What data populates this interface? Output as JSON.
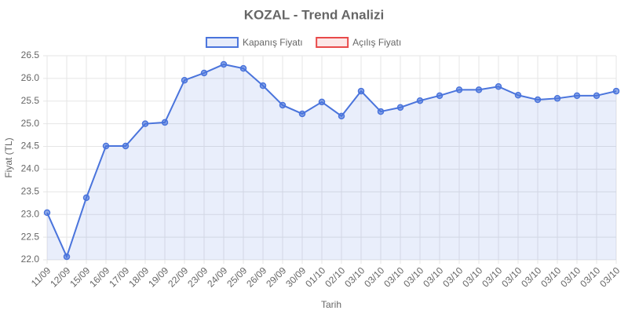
{
  "chart_data": {
    "type": "line",
    "title": "KOZAL - Trend Analizi",
    "x_label": "Tarih",
    "y_label": "Fiyat (TL)",
    "categories": [
      "11/09",
      "12/09",
      "15/09",
      "16/09",
      "17/09",
      "18/09",
      "19/09",
      "22/09",
      "23/09",
      "24/09",
      "25/09",
      "26/09",
      "29/09",
      "30/09",
      "01/10",
      "02/10",
      "03/10",
      "03/10",
      "03/10",
      "03/10",
      "03/10",
      "03/10",
      "03/10",
      "03/10",
      "03/10",
      "03/10",
      "03/10",
      "03/10",
      "03/10",
      "03/10"
    ],
    "series": [
      {
        "name": "Kapanış Fiyatı",
        "color": "#4a74dc",
        "fill": true,
        "values": [
          23.04,
          22.07,
          23.37,
          24.51,
          24.51,
          25.0,
          25.03,
          25.96,
          26.12,
          26.31,
          26.22,
          25.84,
          25.41,
          25.22,
          25.48,
          25.17,
          25.72,
          25.27,
          25.36,
          25.51,
          25.62,
          25.75,
          25.75,
          25.82,
          25.63,
          25.53,
          25.56,
          25.62,
          25.62,
          25.72
        ]
      },
      {
        "name": "Açılış Fiyatı",
        "color": "#e84a4a"
      }
    ],
    "ylim": [
      22,
      26.5
    ],
    "yticks": [
      {
        "value": 22,
        "label": "22.0"
      },
      {
        "value": 22.5,
        "label": "22.5"
      },
      {
        "value": 23,
        "label": "23.0"
      },
      {
        "value": 23.5,
        "label": "23.5"
      },
      {
        "value": 24,
        "label": "24.0"
      },
      {
        "value": 24.5,
        "label": "24.5"
      },
      {
        "value": 25,
        "label": "25.0"
      },
      {
        "value": 25.5,
        "label": "25.5"
      },
      {
        "value": 26,
        "label": "26.0"
      },
      {
        "value": 26.5,
        "label": "26.5"
      }
    ],
    "grid": true,
    "legend": "top"
  }
}
